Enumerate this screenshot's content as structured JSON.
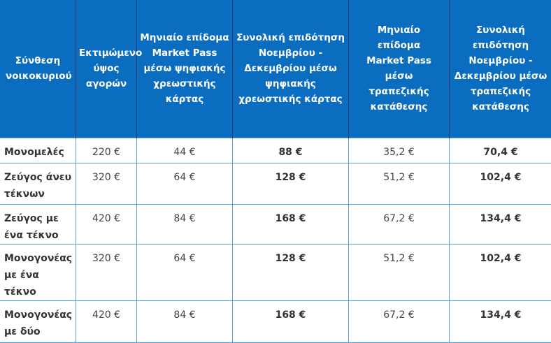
{
  "table": {
    "headers": [
      "Σύνθεση νοικοκυριού",
      "Εκτιμώμενο ύψος αγορών",
      "Μηνιαίο επίδομα Market Pass μέσω ψηφιακής χρεωστικής κάρτας",
      "Συνολική επιδότηση Νοεμβρίου - Δεκεμβρίου μέσω ψηφιακής χρεωστικής κάρτας",
      "Μηνιαίο επίδομα Market Pass μέσω τραπεζικής κατάθεσης",
      "Συνολική επιδότηση Νοεμβρίου - Δεκεμβρίου μέσω τραπεζικής κατάθεσης"
    ],
    "rows": [
      [
        "Μονομελές",
        "220 €",
        "44 €",
        "88 €",
        "35,2 €",
        "70,4 €"
      ],
      [
        "Ζεύγος άνευ τέκνων",
        "320 €",
        "64 €",
        "128 €",
        "51,2 €",
        "102,4 €"
      ],
      [
        "Ζεύγος με ένα τέκνο",
        "420 €",
        "84 €",
        "168 €",
        "67,2 €",
        "134,4 €"
      ],
      [
        "Μονογονέας με ένα τέκνο",
        "320 €",
        "64 €",
        "128 €",
        "51,2 €",
        "102,4 €"
      ],
      [
        "Μονογονέας με δύο",
        "420 €",
        "84 €",
        "168 €",
        "67,2 €",
        "134,4 €"
      ]
    ]
  },
  "colors": {
    "header_bg": "#0b6dc0",
    "grid": "#4da4df"
  }
}
